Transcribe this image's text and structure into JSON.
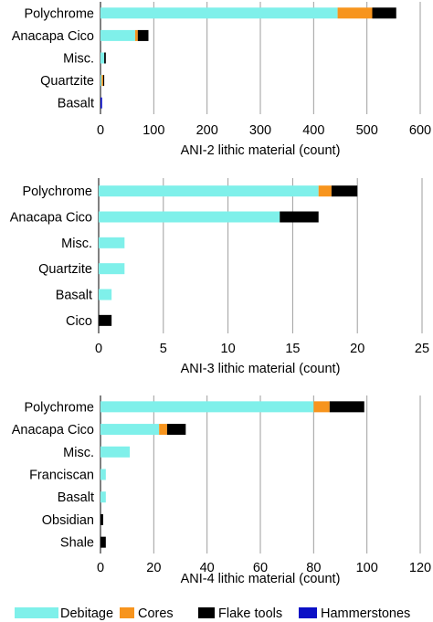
{
  "colors": {
    "Debitage": "#7ff0ea",
    "Cores": "#f7941d",
    "Flake tools": "#000000",
    "Hammerstones": "#0b10c6"
  },
  "legend": {
    "items": [
      {
        "name": "Debitage",
        "icon": "swatch"
      },
      {
        "name": "Cores",
        "icon": "swatch"
      },
      {
        "name": "Flake tools",
        "icon": "swatch"
      },
      {
        "name": "Hammerstones",
        "icon": "swatch"
      }
    ],
    "placement": "bottom"
  },
  "chart_data": [
    {
      "type": "bar",
      "orientation": "horizontal",
      "stacked": true,
      "title": "",
      "xlabel": "ANI-2 lithic material (count)",
      "ylabel": "",
      "xlim": [
        0,
        600
      ],
      "ticks": [
        "0",
        "100",
        "200",
        "300",
        "400",
        "500",
        "600"
      ],
      "grid": true,
      "categories": [
        "Polychrome",
        "Anacapa Cico",
        "Misc.",
        "Quartzite",
        "Basalt"
      ],
      "series": [
        {
          "name": "Debitage",
          "values": [
            445,
            65,
            7,
            2,
            0
          ]
        },
        {
          "name": "Cores",
          "values": [
            65,
            5,
            0,
            3,
            0
          ]
        },
        {
          "name": "Flake tools",
          "values": [
            45,
            20,
            3,
            2,
            0
          ]
        },
        {
          "name": "Hammerstones",
          "values": [
            0,
            0,
            0,
            0,
            3
          ]
        }
      ]
    },
    {
      "type": "bar",
      "orientation": "horizontal",
      "stacked": true,
      "title": "",
      "xlabel": "ANI-3 lithic material (count)",
      "ylabel": "",
      "xlim": [
        0,
        25
      ],
      "ticks": [
        "0",
        "5",
        "10",
        "15",
        "20",
        "25"
      ],
      "grid": true,
      "categories": [
        "Polychrome",
        "Anacapa Cico",
        "Misc.",
        "Quartzite",
        "Basalt",
        "Cico"
      ],
      "series": [
        {
          "name": "Debitage",
          "values": [
            17,
            14,
            2,
            2,
            1,
            0
          ]
        },
        {
          "name": "Cores",
          "values": [
            1,
            0,
            0,
            0,
            0,
            0
          ]
        },
        {
          "name": "Flake tools",
          "values": [
            2,
            3,
            0,
            0,
            0,
            1
          ]
        },
        {
          "name": "Hammerstones",
          "values": [
            0,
            0,
            0,
            0,
            0,
            0
          ]
        }
      ]
    },
    {
      "type": "bar",
      "orientation": "horizontal",
      "stacked": true,
      "title": "",
      "xlabel": "ANI-4 lithic material (count)",
      "ylabel": "",
      "xlim": [
        0,
        120
      ],
      "ticks": [
        "0",
        "20",
        "40",
        "60",
        "80",
        "100",
        "120"
      ],
      "grid": true,
      "categories": [
        "Polychrome",
        "Anacapa Cico",
        "Misc.",
        "Franciscan",
        "Basalt",
        "Obsidian",
        "Shale"
      ],
      "series": [
        {
          "name": "Debitage",
          "values": [
            80,
            22,
            11,
            2,
            2,
            0,
            0
          ]
        },
        {
          "name": "Cores",
          "values": [
            6,
            3,
            0,
            0,
            0,
            0,
            0
          ]
        },
        {
          "name": "Flake tools",
          "values": [
            13,
            7,
            0,
            0,
            0,
            1,
            2
          ]
        },
        {
          "name": "Hammerstones",
          "values": [
            0,
            0,
            0,
            0,
            0,
            0,
            0
          ]
        }
      ]
    }
  ]
}
